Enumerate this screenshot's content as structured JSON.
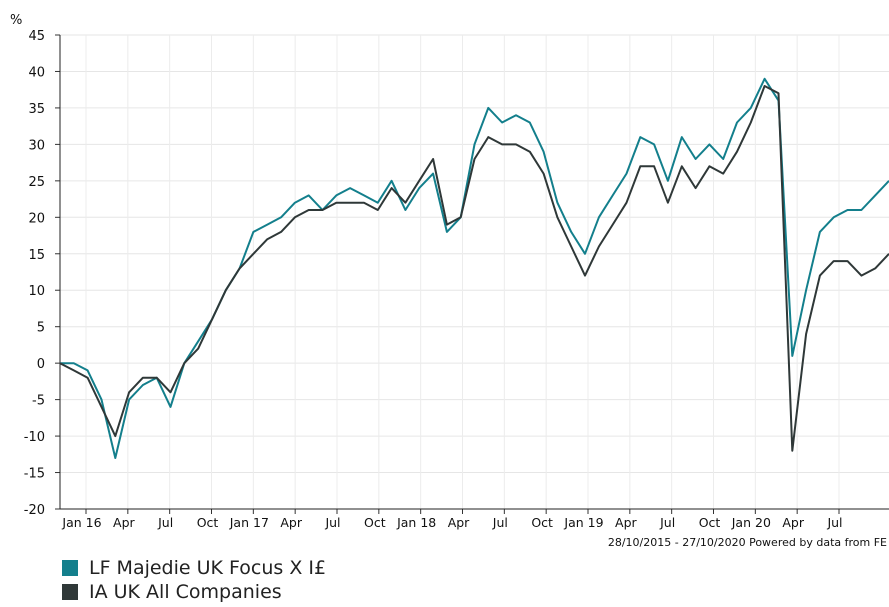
{
  "chart_data": {
    "type": "line",
    "y_unit_label": "%",
    "ylim": [
      -20,
      45
    ],
    "y_ticks": [
      -20,
      -15,
      -10,
      -5,
      0,
      5,
      10,
      15,
      20,
      25,
      30,
      35,
      40,
      45
    ],
    "grid": true,
    "x_ticks": [
      "Jan 16",
      "Apr",
      "Jul",
      "Oct",
      "Jan 17",
      "Apr",
      "Jul",
      "Oct",
      "Jan 18",
      "Apr",
      "Jul",
      "Oct",
      "Jan 19",
      "Apr",
      "Jul",
      "Oct",
      "Jan 20",
      "Apr",
      "Jul"
    ],
    "date_range_note": "28/10/2015 - 27/10/2020 Powered by data from FE",
    "x": [
      "2015-10",
      "2015-11",
      "2015-12",
      "2016-01",
      "2016-02",
      "2016-03",
      "2016-04",
      "2016-05",
      "2016-06",
      "2016-07",
      "2016-08",
      "2016-09",
      "2016-10",
      "2016-11",
      "2016-12",
      "2017-01",
      "2017-02",
      "2017-03",
      "2017-04",
      "2017-05",
      "2017-06",
      "2017-07",
      "2017-08",
      "2017-09",
      "2017-10",
      "2017-11",
      "2017-12",
      "2018-01",
      "2018-02",
      "2018-03",
      "2018-04",
      "2018-05",
      "2018-06",
      "2018-07",
      "2018-08",
      "2018-09",
      "2018-10",
      "2018-11",
      "2018-12",
      "2019-01",
      "2019-02",
      "2019-03",
      "2019-04",
      "2019-05",
      "2019-06",
      "2019-07",
      "2019-08",
      "2019-09",
      "2019-10",
      "2019-11",
      "2019-12",
      "2020-01",
      "2020-02",
      "2020-03",
      "2020-04",
      "2020-05",
      "2020-06",
      "2020-07",
      "2020-08",
      "2020-09",
      "2020-10"
    ],
    "series": [
      {
        "name": "LF Majedie UK Focus X I£",
        "color": "#137f8c",
        "values": [
          0,
          0,
          -1,
          -5,
          -13,
          -5,
          -3,
          -2,
          -6,
          0,
          3,
          6,
          10,
          13,
          18,
          19,
          20,
          22,
          23,
          21,
          23,
          24,
          23,
          22,
          25,
          21,
          24,
          26,
          18,
          20,
          30,
          35,
          33,
          34,
          33,
          29,
          22,
          18,
          15,
          20,
          23,
          26,
          31,
          30,
          25,
          31,
          28,
          30,
          28,
          33,
          35,
          39,
          36,
          1,
          10,
          18,
          20,
          21,
          21,
          23,
          25
        ]
      },
      {
        "name": "IA UK All Companies",
        "color": "#2f3838",
        "values": [
          0,
          -1,
          -2,
          -6,
          -10,
          -4,
          -2,
          -2,
          -4,
          0,
          2,
          6,
          10,
          13,
          15,
          17,
          18,
          20,
          21,
          21,
          22,
          22,
          22,
          21,
          24,
          22,
          25,
          28,
          19,
          20,
          28,
          31,
          30,
          30,
          29,
          26,
          20,
          16,
          12,
          16,
          19,
          22,
          27,
          27,
          22,
          27,
          24,
          27,
          26,
          29,
          33,
          38,
          37,
          -12,
          4,
          12,
          14,
          14,
          12,
          13,
          15
        ]
      }
    ]
  },
  "legend": {
    "series1_label": "LF Majedie UK Focus X I£",
    "series2_label": "IA UK All Companies"
  }
}
